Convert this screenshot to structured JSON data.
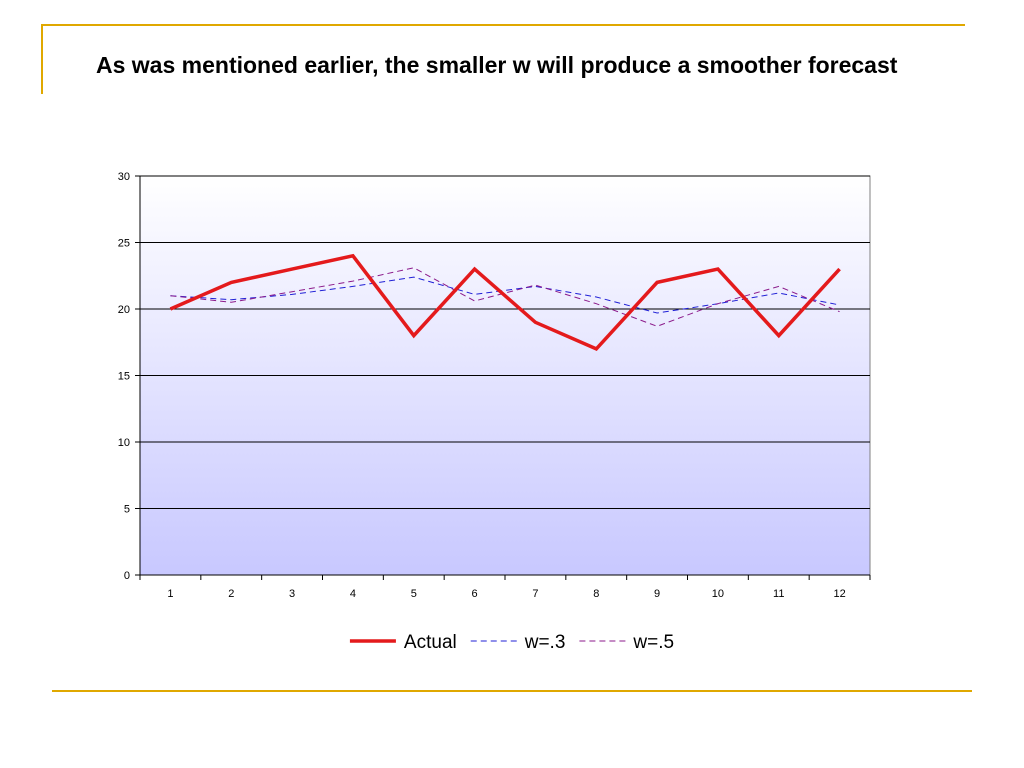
{
  "slide": {
    "title": "As was mentioned earlier, the smaller w will produce a smoother forecast",
    "accent_color": "#e0a800"
  },
  "chart_data": {
    "type": "line",
    "title": "",
    "xlabel": "",
    "ylabel": "",
    "categories": [
      "1",
      "2",
      "3",
      "4",
      "5",
      "6",
      "7",
      "8",
      "9",
      "10",
      "11",
      "12"
    ],
    "ylim": [
      0,
      30
    ],
    "yticks": [
      0,
      5,
      10,
      15,
      20,
      25,
      30
    ],
    "grid": true,
    "legend_position": "bottom",
    "plot_background": {
      "top": "#ffffff",
      "bottom": "#c8c8ff"
    },
    "series": [
      {
        "name": "Actual",
        "values": [
          20,
          22,
          23,
          24,
          18,
          23,
          19,
          17,
          22,
          23,
          18,
          23
        ],
        "color": "#e41a1c",
        "style": "solid"
      },
      {
        "name": "w=.3",
        "values": [
          21.0,
          20.7,
          21.1,
          21.7,
          22.4,
          21.1,
          21.7,
          20.9,
          19.7,
          20.4,
          21.2,
          20.3
        ],
        "color": "#1f1fd6",
        "style": "dashed"
      },
      {
        "name": "w=.5",
        "values": [
          21.0,
          20.5,
          21.3,
          22.1,
          23.1,
          20.6,
          21.8,
          20.4,
          18.7,
          20.4,
          21.7,
          19.8
        ],
        "color": "#8b1a8b",
        "style": "dashed"
      }
    ]
  }
}
